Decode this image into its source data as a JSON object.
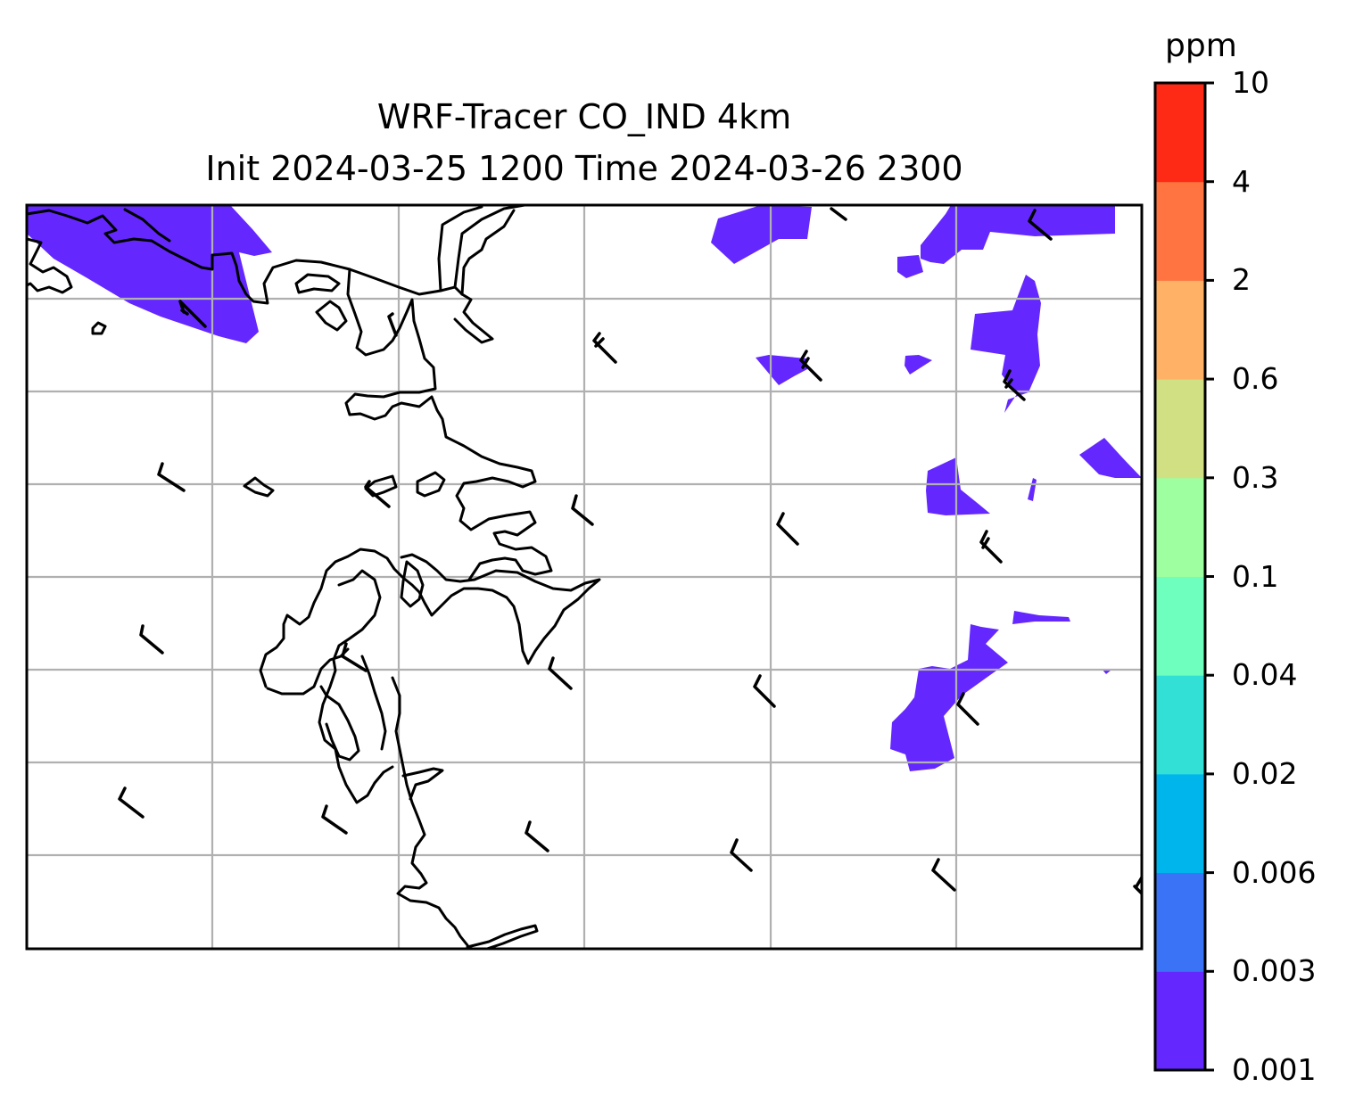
{
  "title": {
    "line1": "WRF-Tracer CO_IND 4km",
    "line2": "Init 2024-03-25 1200 Time 2024-03-26 2300"
  },
  "colorbar": {
    "unit": "ppm",
    "levels": [
      "0.001",
      "0.003",
      "0.006",
      "0.02",
      "0.04",
      "0.1",
      "0.3",
      "0.6",
      "2",
      "4",
      "10"
    ],
    "colors": [
      "#6428ff",
      "#3a73f5",
      "#00b4ec",
      "#33e0d6",
      "#6effbe",
      "#9dffa0",
      "#d0e083",
      "#ffb266",
      "#ff7441",
      "#ff2a16"
    ]
  },
  "map": {
    "plume_color": "#6428ff",
    "coastline_color": "#000000",
    "grid_color": "#b0b0b0"
  }
}
